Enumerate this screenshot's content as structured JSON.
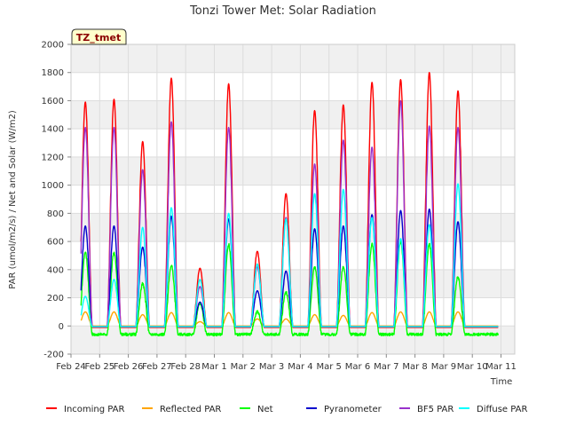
{
  "chart_data": {
    "type": "line",
    "title": "Tonzi Tower Met: Solar Radiation",
    "site_tag": "TZ_tmet",
    "xlabel": "Time",
    "ylabel": "PAR (umol/m2/s) / Net and Solar (W/m2)",
    "xlim": [
      0,
      16
    ],
    "ylim": [
      -200,
      2000
    ],
    "x_ticks": [
      {
        "x": 0,
        "label": "Feb 24"
      },
      {
        "x": 1,
        "label": "Feb 25"
      },
      {
        "x": 2,
        "label": "Feb 26"
      },
      {
        "x": 3,
        "label": "Feb 27"
      },
      {
        "x": 4,
        "label": "Feb 28"
      },
      {
        "x": 5,
        "label": "Mar 1"
      },
      {
        "x": 6,
        "label": "Mar 2"
      },
      {
        "x": 7,
        "label": "Mar 3"
      },
      {
        "x": 8,
        "label": "Mar 4"
      },
      {
        "x": 9,
        "label": "Mar 5"
      },
      {
        "x": 10,
        "label": "Mar 6"
      },
      {
        "x": 11,
        "label": "Mar 7"
      },
      {
        "x": 12,
        "label": "Mar 8"
      },
      {
        "x": 13,
        "label": "Mar 9"
      },
      {
        "x": 14,
        "label": "Mar 10"
      },
      {
        "x": 15,
        "label": "Mar 11"
      }
    ],
    "y_ticks": [
      {
        "y": -200,
        "label": "-200"
      },
      {
        "y": 0,
        "label": "0"
      },
      {
        "y": 200,
        "label": "200"
      },
      {
        "y": 400,
        "label": "400"
      },
      {
        "y": 600,
        "label": "600"
      },
      {
        "y": 800,
        "label": "800"
      },
      {
        "y": 1000,
        "label": "1000"
      },
      {
        "y": 1200,
        "label": "1200"
      },
      {
        "y": 1400,
        "label": "1400"
      },
      {
        "y": 1600,
        "label": "1600"
      },
      {
        "y": 1800,
        "label": "1800"
      },
      {
        "y": 2000,
        "label": "2000"
      }
    ],
    "bands": [
      [
        -200,
        0
      ],
      [
        200,
        400
      ],
      [
        600,
        800
      ],
      [
        1000,
        1200
      ],
      [
        1400,
        1600
      ],
      [
        1800,
        2000
      ]
    ],
    "data_range": [
      0.35,
      14.9
    ],
    "day_peaks": [
      0.5,
      1.5,
      2.5,
      3.5,
      4.5,
      5.5,
      6.5,
      7.5,
      8.5,
      9.5,
      10.5,
      11.5,
      12.5,
      13.5
    ],
    "legend_position": "bottom",
    "series": [
      {
        "name": "Incoming PAR",
        "color": "#ff0000",
        "night": -10,
        "peaks": [
          1590,
          1610,
          1310,
          1760,
          410,
          1720,
          530,
          940,
          1530,
          1570,
          1730,
          1750,
          1800,
          1670
        ]
      },
      {
        "name": "Reflected PAR",
        "color": "#ffa500",
        "night": 0,
        "peaks": [
          100,
          100,
          80,
          95,
          30,
          95,
          50,
          50,
          80,
          75,
          95,
          100,
          100,
          100
        ]
      },
      {
        "name": "Net",
        "color": "#00ff00",
        "night": -60,
        "peaks": [
          520,
          520,
          300,
          430,
          160,
          580,
          100,
          240,
          420,
          420,
          580,
          600,
          580,
          350
        ]
      },
      {
        "name": "Pyranometer",
        "color": "#0000cd",
        "night": -5,
        "peaks": [
          710,
          710,
          560,
          780,
          170,
          760,
          250,
          390,
          690,
          710,
          790,
          820,
          830,
          740
        ]
      },
      {
        "name": "BF5 PAR",
        "color": "#9932cc",
        "night": -5,
        "peaks": [
          1410,
          1410,
          1110,
          1450,
          280,
          1410,
          420,
          770,
          1150,
          1320,
          1270,
          1600,
          1420,
          1410
        ]
      },
      {
        "name": "Diffuse PAR",
        "color": "#00ffff",
        "night": -5,
        "peaks": [
          210,
          330,
          700,
          840,
          330,
          800,
          440,
          760,
          940,
          970,
          770,
          620,
          720,
          1010
        ]
      }
    ]
  }
}
